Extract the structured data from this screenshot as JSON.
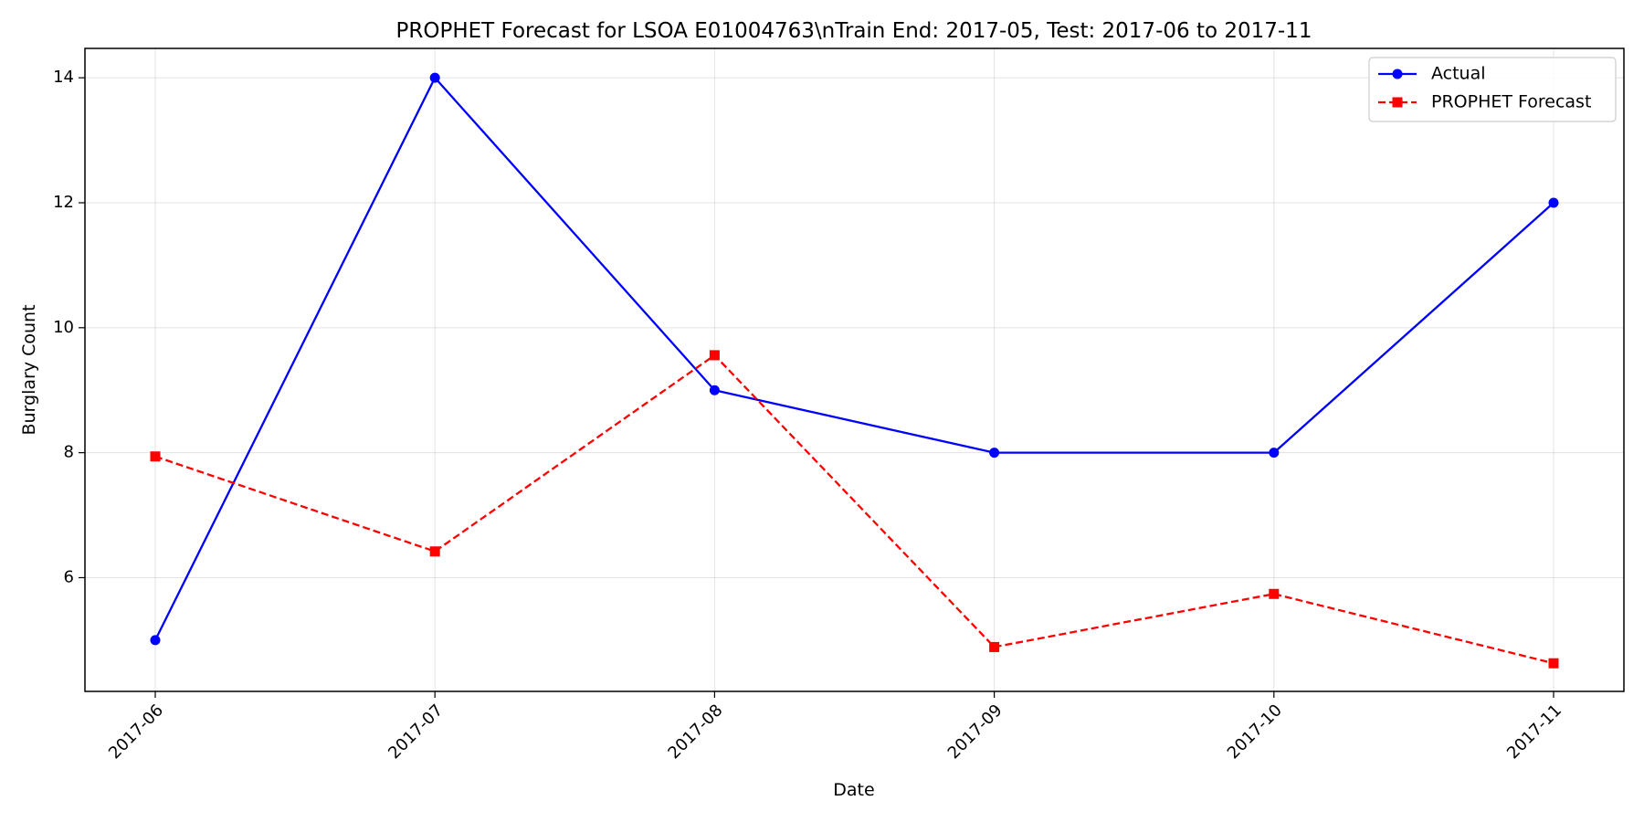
{
  "chart_data": {
    "type": "line",
    "title": "PROPHET Forecast for LSOA E01004763\\nTrain End: 2017-05, Test: 2017-06 to 2017-11",
    "xlabel": "Date",
    "ylabel": "Burglary Count",
    "categories": [
      "2017-06",
      "2017-07",
      "2017-08",
      "2017-09",
      "2017-10",
      "2017-11"
    ],
    "yticks": [
      "6",
      "8",
      "10",
      "12",
      "14"
    ],
    "ylim": [
      4.18,
      14.47
    ],
    "grid": true,
    "legend_position": "top-right",
    "series": [
      {
        "name": "Actual",
        "values": [
          5,
          14,
          9,
          8,
          8,
          12
        ],
        "color": "#0000ff",
        "marker": "circle",
        "line_style": "solid"
      },
      {
        "name": "PROPHET Forecast",
        "values": [
          7.94,
          6.42,
          9.56,
          4.89,
          5.74,
          4.63
        ],
        "color": "#ff0000",
        "marker": "square",
        "line_style": "dashed"
      }
    ]
  }
}
